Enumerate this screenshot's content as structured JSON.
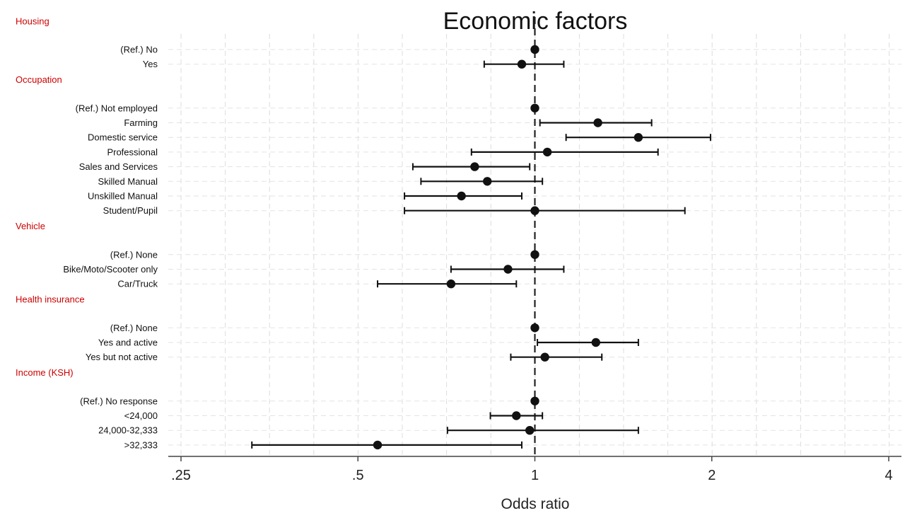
{
  "chart_data": {
    "type": "forest",
    "title": "Economic factors",
    "xlabel": "Odds ratio",
    "x_scale": "log2",
    "xlim": [
      0.25,
      4
    ],
    "x_ticks": [
      0.25,
      0.5,
      1,
      2,
      4
    ],
    "x_tick_labels": [
      ".25",
      ".5",
      "1",
      "2",
      "4"
    ],
    "reference_line": 1,
    "grid": true,
    "group_label_color": "#cc0000",
    "marker_color": "#111111",
    "groups": [
      {
        "name": "Housing",
        "rows": [
          {
            "label": "(Ref.) No",
            "or": 1.0,
            "lo": null,
            "hi": null
          },
          {
            "label": "Yes",
            "or": 0.95,
            "lo": 0.82,
            "hi": 1.12
          }
        ]
      },
      {
        "name": "Occupation",
        "rows": [
          {
            "label": "(Ref.) Not employed",
            "or": 1.0,
            "lo": null,
            "hi": null
          },
          {
            "label": "Farming",
            "or": 1.28,
            "lo": 1.02,
            "hi": 1.58
          },
          {
            "label": "Domestic service",
            "or": 1.5,
            "lo": 1.13,
            "hi": 1.99
          },
          {
            "label": "Professional",
            "or": 1.05,
            "lo": 0.78,
            "hi": 1.62
          },
          {
            "label": "Sales and Services",
            "or": 0.79,
            "lo": 0.62,
            "hi": 0.98
          },
          {
            "label": "Skilled Manual",
            "or": 0.83,
            "lo": 0.64,
            "hi": 1.03
          },
          {
            "label": "Unskilled Manual",
            "or": 0.75,
            "lo": 0.6,
            "hi": 0.95
          },
          {
            "label": "Student/Pupil",
            "or": 1.0,
            "lo": 0.6,
            "hi": 1.8
          }
        ]
      },
      {
        "name": "Vehicle",
        "rows": [
          {
            "label": "(Ref.) None",
            "or": 1.0,
            "lo": null,
            "hi": null
          },
          {
            "label": "Bike/Moto/Scooter only",
            "or": 0.9,
            "lo": 0.72,
            "hi": 1.12
          },
          {
            "label": "Car/Truck",
            "or": 0.72,
            "lo": 0.54,
            "hi": 0.93
          }
        ]
      },
      {
        "name": "Health insurance",
        "rows": [
          {
            "label": "(Ref.) None",
            "or": 1.0,
            "lo": null,
            "hi": null
          },
          {
            "label": "Yes and active",
            "or": 1.27,
            "lo": 1.01,
            "hi": 1.5
          },
          {
            "label": "Yes but not active",
            "or": 1.04,
            "lo": 0.91,
            "hi": 1.3
          }
        ]
      },
      {
        "name": "Income (KSH)",
        "rows": [
          {
            "label": "(Ref.) No response",
            "or": 1.0,
            "lo": null,
            "hi": null
          },
          {
            "label": "<24,000",
            "or": 0.93,
            "lo": 0.84,
            "hi": 1.03
          },
          {
            "label": "24,000-32,333",
            "or": 0.98,
            "lo": 0.71,
            "hi": 1.5
          },
          {
            "label": ">32,333",
            "or": 0.54,
            "lo": 0.33,
            "hi": 0.95
          }
        ]
      }
    ]
  }
}
